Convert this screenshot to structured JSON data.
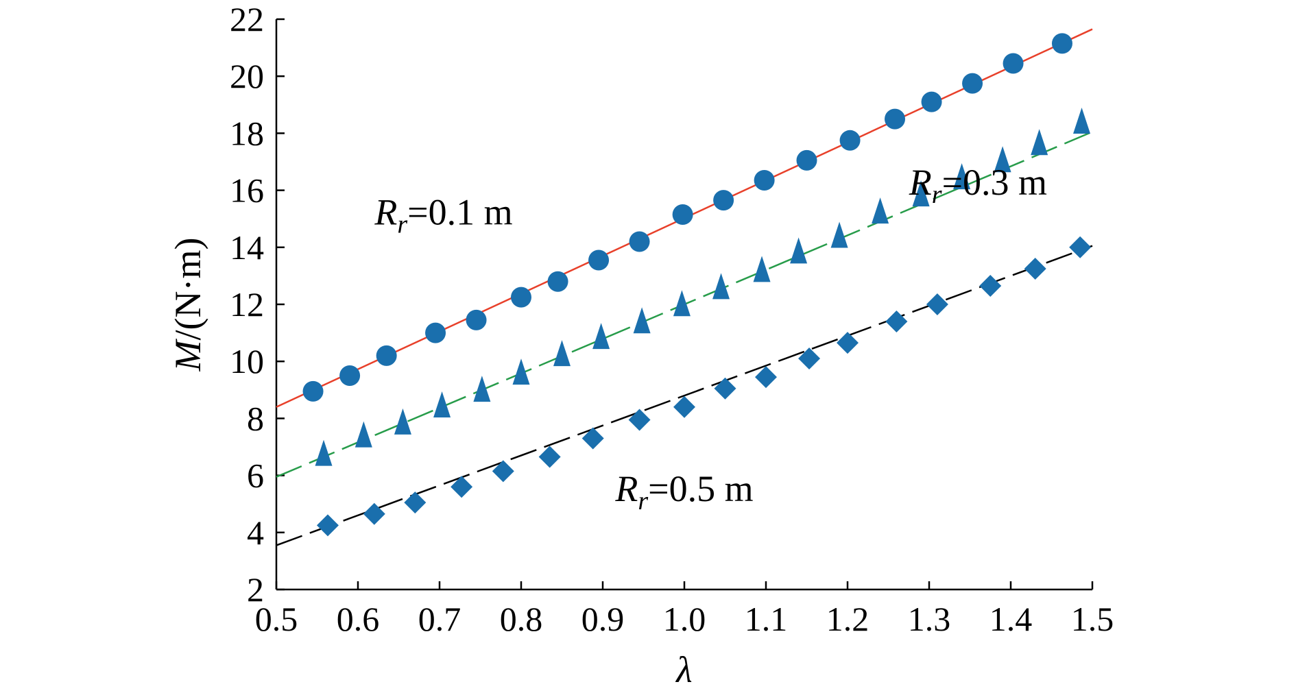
{
  "chart_data": {
    "type": "scatter",
    "title": "",
    "xlabel": "λ",
    "ylabel_prefix": "M",
    "ylabel_suffix": "/(N·m)",
    "xlim": [
      0.5,
      1.5
    ],
    "ylim": [
      2,
      22
    ],
    "x_ticks": [
      "0.5",
      "0.6",
      "0.7",
      "0.8",
      "0.9",
      "1.0",
      "1.1",
      "1.2",
      "1.3",
      "1.4",
      "1.5"
    ],
    "y_ticks": [
      "2",
      "4",
      "6",
      "8",
      "10",
      "12",
      "14",
      "16",
      "18",
      "20",
      "22"
    ],
    "grid": false,
    "legend": "none",
    "marker_color": "#1a6fad",
    "series": [
      {
        "marker": "circle",
        "line_color": "#e8402a",
        "line_style": "solid",
        "fit": [
          [
            0.5,
            8.4
          ],
          [
            1.5,
            21.65
          ]
        ],
        "x": [
          0.545,
          0.59,
          0.635,
          0.695,
          0.745,
          0.8,
          0.845,
          0.895,
          0.945,
          0.998,
          1.048,
          1.098,
          1.15,
          1.203,
          1.258,
          1.303,
          1.353,
          1.403,
          1.463
        ],
        "y": [
          8.95,
          9.5,
          10.2,
          11.0,
          11.45,
          12.25,
          12.8,
          13.55,
          14.2,
          15.15,
          15.65,
          16.35,
          17.05,
          17.75,
          18.5,
          19.1,
          19.75,
          20.45,
          21.15
        ]
      },
      {
        "marker": "triangle",
        "line_color": "#279c4a",
        "line_style": "dashed",
        "fit": [
          [
            0.5,
            5.95
          ],
          [
            1.5,
            18.05
          ]
        ],
        "x": [
          0.558,
          0.607,
          0.655,
          0.703,
          0.752,
          0.8,
          0.85,
          0.898,
          0.948,
          0.997,
          1.045,
          1.095,
          1.14,
          1.19,
          1.24,
          1.29,
          1.34,
          1.39,
          1.435,
          1.487
        ],
        "y": [
          6.7,
          7.35,
          7.8,
          8.4,
          8.95,
          9.55,
          10.2,
          10.8,
          11.35,
          11.95,
          12.55,
          13.15,
          13.8,
          14.35,
          15.2,
          15.8,
          16.4,
          17.0,
          17.6,
          18.35
        ]
      },
      {
        "marker": "diamond",
        "line_color": "#000000",
        "line_style": "dashed",
        "fit": [
          [
            0.5,
            3.55
          ],
          [
            1.5,
            14.05
          ]
        ],
        "x": [
          0.563,
          0.62,
          0.67,
          0.727,
          0.778,
          0.835,
          0.888,
          0.945,
          1.0,
          1.05,
          1.1,
          1.153,
          1.2,
          1.26,
          1.31,
          1.375,
          1.43,
          1.485
        ],
        "y": [
          4.25,
          4.65,
          5.05,
          5.6,
          6.15,
          6.65,
          7.3,
          7.95,
          8.4,
          9.05,
          9.45,
          10.1,
          10.65,
          11.4,
          12.0,
          12.65,
          13.25,
          14.0
        ]
      }
    ],
    "annotations": [
      {
        "main": "R",
        "sub": "r",
        "rest": "=0.1 m",
        "x": 0.705,
        "y": 14.8
      },
      {
        "main": "R",
        "sub": "r",
        "rest": "=0.3 m",
        "x": 1.36,
        "y": 15.85
      },
      {
        "main": "R",
        "sub": "r",
        "rest": "=0.5 m",
        "x": 1.0,
        "y": 5.1
      }
    ]
  }
}
